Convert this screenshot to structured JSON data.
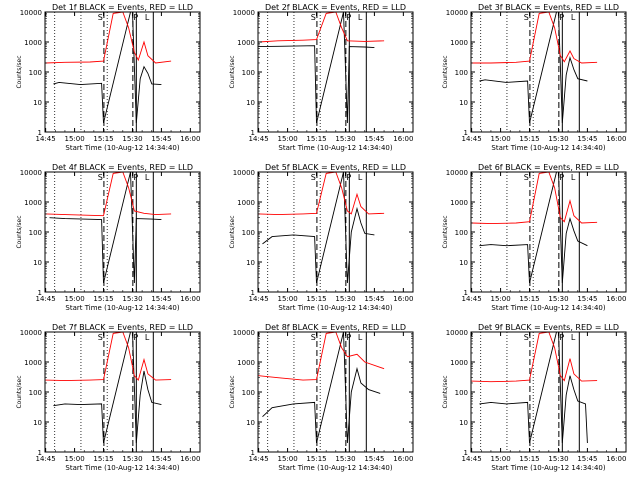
{
  "shared": {
    "xlabel": "Start Time (10-Aug-12 14:34:40)",
    "ylabel": "Counts/sec",
    "xticks": [
      "14:45",
      "15:00",
      "15:15",
      "15:30",
      "15:45",
      "16:00"
    ],
    "yticks": [
      "1",
      "10",
      "100",
      "1000",
      "10000"
    ],
    "x_range_minutes_after_14_30": [
      14.67,
      95
    ],
    "y_range": [
      1,
      10000
    ],
    "y_scale": "log",
    "series_colors": {
      "events": "#000000",
      "lld": "#ff0000"
    },
    "markers": {
      "S": "S",
      "P": "P",
      "L": "L"
    }
  },
  "chart_data": [
    {
      "type": "line",
      "title": "Det 1f BLACK = Events, RED = LLD",
      "series": [
        {
          "name": "Events",
          "values": [
            [
              19,
              40
            ],
            [
              22,
              45
            ],
            [
              33,
              38
            ],
            [
              44,
              42
            ],
            [
              45,
              2
            ],
            [
              59,
              10000
            ],
            [
              60,
              10000
            ],
            [
              62,
              2
            ],
            [
              64,
              60
            ],
            [
              66,
              150
            ],
            [
              68,
              90
            ],
            [
              70,
              40
            ],
            [
              75,
              38
            ]
          ]
        },
        {
          "name": "LLD",
          "values": [
            [
              15,
              200
            ],
            [
              25,
              210
            ],
            [
              38,
              215
            ],
            [
              45,
              230
            ],
            [
              50,
              9000
            ],
            [
              55,
              10000
            ],
            [
              58,
              3000
            ],
            [
              61,
              450
            ],
            [
              63,
              250
            ],
            [
              66,
              1000
            ],
            [
              68,
              350
            ],
            [
              72,
              200
            ],
            [
              80,
              230
            ]
          ]
        }
      ],
      "s_marker": 43.3,
      "p_marker": 61.7,
      "l_marker": 67.6,
      "dashed": [
        45.2,
        60.2
      ],
      "solid": [
        62,
        70.8
      ],
      "dotted": [
        19.7,
        33.3,
        46.9
      ]
    },
    {
      "type": "line",
      "title": "Det 2f BLACK = Events, RED = LLD",
      "series": [
        {
          "name": "Events",
          "values": [
            [
              15,
              700
            ],
            [
              25,
              720
            ],
            [
              44,
              750
            ],
            [
              45,
              2
            ],
            [
              59,
              10000
            ],
            [
              61,
              2
            ],
            [
              62,
              700
            ],
            [
              70,
              680
            ],
            [
              75,
              650
            ]
          ]
        },
        {
          "name": "LLD",
          "values": [
            [
              15,
              1000
            ],
            [
              25,
              1100
            ],
            [
              38,
              1150
            ],
            [
              45,
              1200
            ],
            [
              50,
              9000
            ],
            [
              55,
              10000
            ],
            [
              58,
              3000
            ],
            [
              61,
              1100
            ],
            [
              70,
              1050
            ],
            [
              80,
              1100
            ]
          ]
        }
      ],
      "s_marker": 43.3,
      "p_marker": 61.7,
      "l_marker": 67.6,
      "dashed": [
        45.2,
        60.2
      ],
      "solid": [
        62,
        70.8
      ],
      "dotted": [
        19.7,
        33.3,
        46.9
      ]
    },
    {
      "type": "line",
      "title": "Det 3f BLACK = Events, RED = LLD",
      "series": [
        {
          "name": "Events",
          "values": [
            [
              19,
              50
            ],
            [
              22,
              55
            ],
            [
              33,
              45
            ],
            [
              44,
              50
            ],
            [
              45,
              2
            ],
            [
              59,
              10000
            ],
            [
              60,
              10000
            ],
            [
              62,
              2
            ],
            [
              64,
              80
            ],
            [
              66,
              300
            ],
            [
              68,
              120
            ],
            [
              70,
              60
            ],
            [
              75,
              50
            ]
          ]
        },
        {
          "name": "LLD",
          "values": [
            [
              15,
              200
            ],
            [
              25,
              200
            ],
            [
              38,
              210
            ],
            [
              45,
              230
            ],
            [
              50,
              9000
            ],
            [
              55,
              10000
            ],
            [
              58,
              3000
            ],
            [
              61,
              350
            ],
            [
              63,
              220
            ],
            [
              66,
              500
            ],
            [
              68,
              280
            ],
            [
              72,
              200
            ],
            [
              80,
              210
            ]
          ]
        }
      ],
      "s_marker": 43.3,
      "p_marker": 61.7,
      "l_marker": 67.6,
      "dashed": [
        45.2,
        60.2
      ],
      "solid": [
        62,
        70.8
      ],
      "dotted": [
        19.7,
        33.3,
        46.9
      ]
    },
    {
      "type": "line",
      "title": "Det 4f BLACK = Events, RED = LLD",
      "series": [
        {
          "name": "Events",
          "values": [
            [
              17,
              300
            ],
            [
              25,
              280
            ],
            [
              44,
              260
            ],
            [
              45,
              2
            ],
            [
              59,
              10000
            ],
            [
              61,
              2
            ],
            [
              62,
              280
            ],
            [
              70,
              270
            ],
            [
              75,
              260
            ]
          ]
        },
        {
          "name": "LLD",
          "values": [
            [
              15,
              400
            ],
            [
              25,
              380
            ],
            [
              38,
              360
            ],
            [
              45,
              350
            ],
            [
              50,
              9000
            ],
            [
              55,
              10000
            ],
            [
              58,
              3000
            ],
            [
              61,
              500
            ],
            [
              66,
              420
            ],
            [
              72,
              380
            ],
            [
              80,
              400
            ]
          ]
        }
      ],
      "s_marker": 43.3,
      "p_marker": 61.7,
      "l_marker": 67.6,
      "dashed": [
        45.2,
        60.2
      ],
      "solid": [
        62,
        70.8
      ],
      "dotted": [
        19.7,
        33.3,
        46.9
      ]
    },
    {
      "type": "line",
      "title": "Det 5f BLACK = Events, RED = LLD",
      "series": [
        {
          "name": "Events",
          "values": [
            [
              17,
              40
            ],
            [
              22,
              70
            ],
            [
              33,
              80
            ],
            [
              44,
              70
            ],
            [
              45,
              2
            ],
            [
              59,
              10000
            ],
            [
              61,
              2
            ],
            [
              63,
              100
            ],
            [
              66,
              600
            ],
            [
              68,
              200
            ],
            [
              70,
              90
            ],
            [
              75,
              80
            ]
          ]
        },
        {
          "name": "LLD",
          "values": [
            [
              15,
              400
            ],
            [
              25,
              380
            ],
            [
              38,
              400
            ],
            [
              45,
              420
            ],
            [
              50,
              9000
            ],
            [
              55,
              10000
            ],
            [
              58,
              3000
            ],
            [
              61,
              500
            ],
            [
              63,
              400
            ],
            [
              66,
              1800
            ],
            [
              68,
              700
            ],
            [
              72,
              400
            ],
            [
              80,
              420
            ]
          ]
        }
      ],
      "s_marker": 43.3,
      "p_marker": 61.7,
      "l_marker": 67.6,
      "dashed": [
        45.2,
        60.2
      ],
      "solid": [
        62,
        70.8
      ],
      "dotted": [
        19.7,
        33.3,
        46.9
      ]
    },
    {
      "type": "line",
      "title": "Det 6f BLACK = Events, RED = LLD",
      "series": [
        {
          "name": "Events",
          "values": [
            [
              19,
              35
            ],
            [
              25,
              38
            ],
            [
              33,
              35
            ],
            [
              44,
              38
            ],
            [
              45,
              2
            ],
            [
              59,
              10000
            ],
            [
              60,
              10000
            ],
            [
              62,
              2
            ],
            [
              64,
              90
            ],
            [
              66,
              280
            ],
            [
              68,
              110
            ],
            [
              70,
              50
            ],
            [
              75,
              35
            ]
          ]
        },
        {
          "name": "LLD",
          "values": [
            [
              15,
              200
            ],
            [
              25,
              190
            ],
            [
              38,
              200
            ],
            [
              45,
              220
            ],
            [
              50,
              9000
            ],
            [
              55,
              10000
            ],
            [
              58,
              3000
            ],
            [
              61,
              300
            ],
            [
              63,
              220
            ],
            [
              66,
              1100
            ],
            [
              68,
              350
            ],
            [
              72,
              200
            ],
            [
              80,
              210
            ]
          ]
        }
      ],
      "s_marker": 43.3,
      "p_marker": 61.7,
      "l_marker": 67.6,
      "dashed": [
        45.2,
        60.2
      ],
      "solid": [
        62,
        70.8
      ],
      "dotted": [
        19.7,
        33.3,
        46.9
      ]
    },
    {
      "type": "line",
      "title": "Det 7f BLACK = Events, RED = LLD",
      "series": [
        {
          "name": "Events",
          "values": [
            [
              19,
              35
            ],
            [
              25,
              40
            ],
            [
              33,
              38
            ],
            [
              44,
              40
            ],
            [
              45,
              2
            ],
            [
              59,
              10000
            ],
            [
              60,
              10000
            ],
            [
              62,
              2
            ],
            [
              64,
              80
            ],
            [
              66,
              500
            ],
            [
              68,
              120
            ],
            [
              70,
              45
            ],
            [
              75,
              38
            ]
          ]
        },
        {
          "name": "LLD",
          "values": [
            [
              15,
              250
            ],
            [
              25,
              240
            ],
            [
              38,
              250
            ],
            [
              45,
              260
            ],
            [
              50,
              9000
            ],
            [
              55,
              10000
            ],
            [
              58,
              3000
            ],
            [
              61,
              350
            ],
            [
              63,
              250
            ],
            [
              66,
              1200
            ],
            [
              68,
              400
            ],
            [
              72,
              250
            ],
            [
              80,
              260
            ]
          ]
        }
      ],
      "s_marker": 43.3,
      "p_marker": 61.7,
      "l_marker": 67.6,
      "dashed": [
        45.2,
        60.2
      ],
      "solid": [
        62,
        70.8
      ],
      "dotted": [
        19.7,
        33.3,
        46.9
      ]
    },
    {
      "type": "line",
      "title": "Det 8f BLACK = Events, RED = LLD",
      "series": [
        {
          "name": "Events",
          "values": [
            [
              17,
              15
            ],
            [
              22,
              30
            ],
            [
              33,
              40
            ],
            [
              44,
              45
            ],
            [
              45,
              2
            ],
            [
              59,
              10000
            ],
            [
              61,
              2
            ],
            [
              63,
              100
            ],
            [
              66,
              600
            ],
            [
              68,
              200
            ],
            [
              72,
              120
            ],
            [
              78,
              90
            ]
          ]
        },
        {
          "name": "LLD",
          "values": [
            [
              15,
              350
            ],
            [
              25,
              300
            ],
            [
              38,
              250
            ],
            [
              45,
              260
            ],
            [
              50,
              9000
            ],
            [
              55,
              10000
            ],
            [
              58,
              3000
            ],
            [
              61,
              1500
            ],
            [
              66,
              1800
            ],
            [
              70,
              1000
            ],
            [
              80,
              600
            ]
          ]
        }
      ],
      "s_marker": 43.3,
      "p_marker": 61.7,
      "l_marker": 67.6,
      "dashed": [
        45.2,
        60.2
      ],
      "solid": [
        62,
        70.8
      ],
      "dotted": [
        19.7,
        33.3,
        46.9
      ]
    },
    {
      "type": "line",
      "title": "Det 9f BLACK = Events, RED = LLD",
      "series": [
        {
          "name": "Events",
          "values": [
            [
              19,
              40
            ],
            [
              25,
              45
            ],
            [
              33,
              40
            ],
            [
              44,
              45
            ],
            [
              45,
              2
            ],
            [
              59,
              10000
            ],
            [
              60,
              10000
            ],
            [
              62,
              2
            ],
            [
              64,
              80
            ],
            [
              66,
              350
            ],
            [
              68,
              120
            ],
            [
              70,
              50
            ],
            [
              74,
              40
            ],
            [
              75,
              2
            ]
          ]
        },
        {
          "name": "LLD",
          "values": [
            [
              15,
              230
            ],
            [
              25,
              220
            ],
            [
              38,
              230
            ],
            [
              45,
              250
            ],
            [
              50,
              9000
            ],
            [
              55,
              10000
            ],
            [
              58,
              3000
            ],
            [
              61,
              350
            ],
            [
              63,
              240
            ],
            [
              66,
              1300
            ],
            [
              68,
              400
            ],
            [
              72,
              230
            ],
            [
              80,
              240
            ]
          ]
        }
      ],
      "s_marker": 43.3,
      "p_marker": 61.7,
      "l_marker": 67.6,
      "dashed": [
        45.2,
        60.2
      ],
      "solid": [
        62,
        70.8
      ],
      "dotted": [
        19.7,
        33.3,
        46.9
      ]
    }
  ]
}
